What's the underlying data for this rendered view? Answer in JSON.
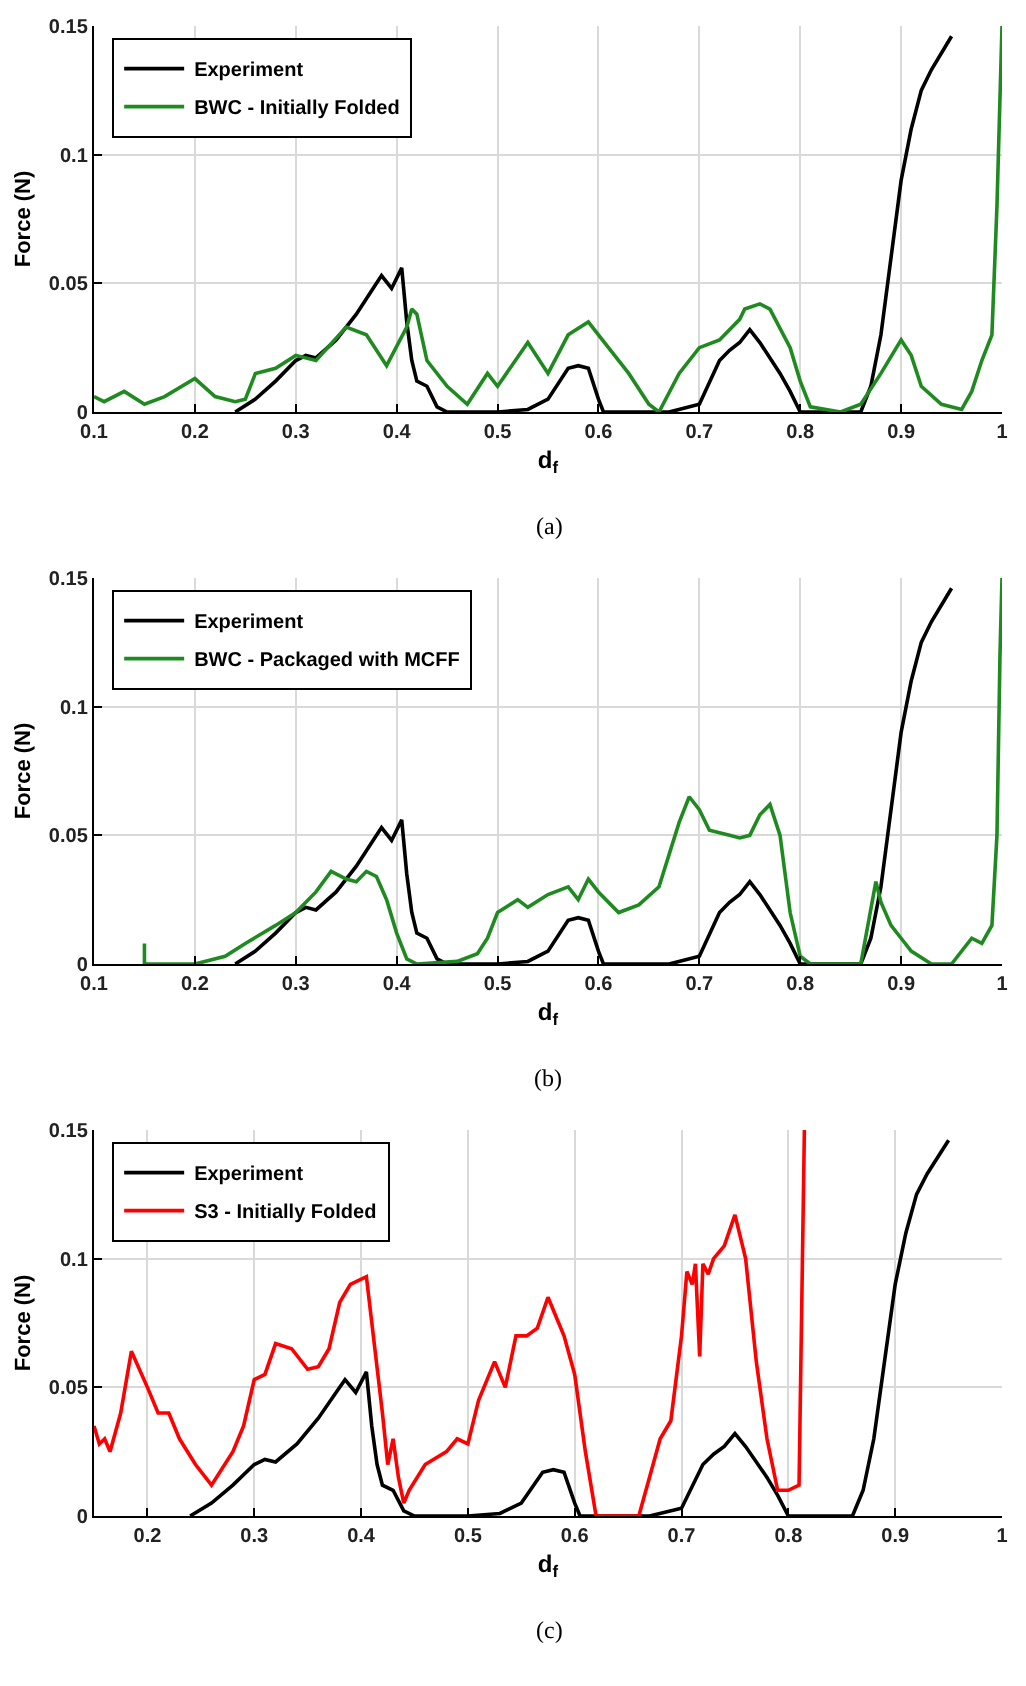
{
  "chart_data": [
    {
      "type": "line",
      "xlabel": "d$_{f}$",
      "ylabel": "Force (N)",
      "annotations": [
        "(a)"
      ],
      "xlim": [
        0.1,
        1
      ],
      "xticks": [
        0.1,
        0.2,
        0.3,
        0.4,
        0.5,
        0.6,
        0.7,
        0.8,
        0.9,
        1
      ],
      "ylim": [
        0,
        0.15
      ],
      "yticks": [
        0,
        0.05,
        0.1,
        0.15
      ],
      "grid": true,
      "legend": "top left",
      "series": [
        {
          "name": "Experiment",
          "color": "#000000",
          "x": [
            0.24,
            0.26,
            0.28,
            0.3,
            0.31,
            0.32,
            0.34,
            0.36,
            0.38,
            0.385,
            0.395,
            0.405,
            0.41,
            0.415,
            0.42,
            0.43,
            0.44,
            0.45,
            0.5,
            0.53,
            0.55,
            0.57,
            0.58,
            0.59,
            0.6,
            0.605,
            0.67,
            0.7,
            0.72,
            0.73,
            0.74,
            0.75,
            0.76,
            0.78,
            0.79,
            0.8,
            0.86,
            0.87,
            0.88,
            0.9,
            0.91,
            0.92,
            0.93,
            0.95
          ],
          "values": [
            0,
            0.005,
            0.012,
            0.02,
            0.022,
            0.021,
            0.028,
            0.038,
            0.05,
            0.053,
            0.048,
            0.056,
            0.035,
            0.02,
            0.012,
            0.01,
            0.002,
            0,
            0,
            0.001,
            0.005,
            0.017,
            0.018,
            0.017,
            0.005,
            0,
            0,
            0.003,
            0.02,
            0.024,
            0.027,
            0.032,
            0.027,
            0.015,
            0.008,
            0,
            0,
            0.01,
            0.03,
            0.09,
            0.11,
            0.125,
            0.133,
            0.146
          ]
        },
        {
          "name": "BWC - Initially Folded",
          "color": "#1f8a1f",
          "x": [
            0.1,
            0.11,
            0.13,
            0.15,
            0.17,
            0.2,
            0.22,
            0.24,
            0.25,
            0.26,
            0.28,
            0.3,
            0.32,
            0.35,
            0.37,
            0.39,
            0.41,
            0.415,
            0.42,
            0.43,
            0.45,
            0.47,
            0.49,
            0.5,
            0.53,
            0.55,
            0.57,
            0.59,
            0.6,
            0.63,
            0.65,
            0.66,
            0.68,
            0.7,
            0.72,
            0.74,
            0.745,
            0.76,
            0.77,
            0.79,
            0.8,
            0.81,
            0.84,
            0.86,
            0.88,
            0.9,
            0.91,
            0.92,
            0.94,
            0.96,
            0.97,
            0.98,
            0.99,
            0.995,
            1
          ],
          "values": [
            0.006,
            0.004,
            0.008,
            0.003,
            0.006,
            0.013,
            0.006,
            0.004,
            0.005,
            0.015,
            0.017,
            0.022,
            0.02,
            0.033,
            0.03,
            0.018,
            0.033,
            0.04,
            0.038,
            0.02,
            0.01,
            0.003,
            0.015,
            0.01,
            0.027,
            0.015,
            0.03,
            0.035,
            0.03,
            0.015,
            0.003,
            0,
            0.015,
            0.025,
            0.028,
            0.036,
            0.04,
            0.042,
            0.04,
            0.025,
            0.012,
            0.002,
            0,
            0.003,
            0.015,
            0.028,
            0.022,
            0.01,
            0.003,
            0.001,
            0.008,
            0.02,
            0.03,
            0.08,
            0.15
          ]
        }
      ]
    },
    {
      "type": "line",
      "xlabel": "d$_{f}$",
      "ylabel": "Force (N)",
      "annotations": [
        "(b)"
      ],
      "xlim": [
        0.1,
        1
      ],
      "xticks": [
        0.1,
        0.2,
        0.3,
        0.4,
        0.5,
        0.6,
        0.7,
        0.8,
        0.9,
        1
      ],
      "ylim": [
        0,
        0.15
      ],
      "yticks": [
        0,
        0.05,
        0.1,
        0.15
      ],
      "grid": true,
      "legend": "top left",
      "series": [
        {
          "name": "Experiment",
          "color": "#000000",
          "x": [
            0.24,
            0.26,
            0.28,
            0.3,
            0.31,
            0.32,
            0.34,
            0.36,
            0.38,
            0.385,
            0.395,
            0.405,
            0.41,
            0.415,
            0.42,
            0.43,
            0.44,
            0.45,
            0.5,
            0.53,
            0.55,
            0.57,
            0.58,
            0.59,
            0.6,
            0.605,
            0.67,
            0.7,
            0.72,
            0.73,
            0.74,
            0.75,
            0.76,
            0.78,
            0.79,
            0.8,
            0.86,
            0.87,
            0.88,
            0.9,
            0.91,
            0.92,
            0.93,
            0.95
          ],
          "values": [
            0,
            0.005,
            0.012,
            0.02,
            0.022,
            0.021,
            0.028,
            0.038,
            0.05,
            0.053,
            0.048,
            0.056,
            0.035,
            0.02,
            0.012,
            0.01,
            0.002,
            0,
            0,
            0.001,
            0.005,
            0.017,
            0.018,
            0.017,
            0.005,
            0,
            0,
            0.003,
            0.02,
            0.024,
            0.027,
            0.032,
            0.027,
            0.015,
            0.008,
            0,
            0,
            0.01,
            0.03,
            0.09,
            0.11,
            0.125,
            0.133,
            0.146
          ]
        },
        {
          "name": "BWC - Packaged with MCFF",
          "color": "#1f8a1f",
          "x": [
            0.15,
            0.15,
            0.2,
            0.23,
            0.25,
            0.28,
            0.3,
            0.32,
            0.335,
            0.35,
            0.36,
            0.37,
            0.38,
            0.39,
            0.4,
            0.41,
            0.42,
            0.46,
            0.48,
            0.49,
            0.5,
            0.52,
            0.53,
            0.55,
            0.57,
            0.58,
            0.59,
            0.6,
            0.62,
            0.64,
            0.66,
            0.68,
            0.69,
            0.7,
            0.71,
            0.73,
            0.74,
            0.75,
            0.76,
            0.77,
            0.78,
            0.79,
            0.8,
            0.81,
            0.86,
            0.875,
            0.88,
            0.89,
            0.9,
            0.91,
            0.93,
            0.95,
            0.97,
            0.98,
            0.99,
            0.995,
            0.998,
            1
          ],
          "values": [
            0.008,
            0,
            0,
            0.003,
            0.008,
            0.015,
            0.02,
            0.028,
            0.036,
            0.033,
            0.032,
            0.036,
            0.034,
            0.025,
            0.012,
            0.002,
            0,
            0.001,
            0.004,
            0.01,
            0.02,
            0.025,
            0.022,
            0.027,
            0.03,
            0.025,
            0.033,
            0.028,
            0.02,
            0.023,
            0.03,
            0.055,
            0.065,
            0.06,
            0.052,
            0.05,
            0.049,
            0.05,
            0.058,
            0.062,
            0.05,
            0.02,
            0.003,
            0,
            0,
            0.032,
            0.024,
            0.015,
            0.01,
            0.005,
            0,
            0,
            0.01,
            0.008,
            0.015,
            0.05,
            0.12,
            0.15
          ]
        }
      ]
    },
    {
      "type": "line",
      "xlabel": "d$_{f}$",
      "ylabel": "Force (N)",
      "annotations": [
        "(c)"
      ],
      "xlim": [
        0.15,
        1
      ],
      "xticks": [
        0.2,
        0.3,
        0.4,
        0.5,
        0.6,
        0.7,
        0.8,
        0.9,
        1
      ],
      "ylim": [
        0,
        0.15
      ],
      "yticks": [
        0,
        0.05,
        0.1,
        0.15
      ],
      "grid": true,
      "legend": "top left",
      "series": [
        {
          "name": "Experiment",
          "color": "#000000",
          "x": [
            0.24,
            0.26,
            0.28,
            0.3,
            0.31,
            0.32,
            0.34,
            0.36,
            0.38,
            0.385,
            0.395,
            0.405,
            0.41,
            0.415,
            0.42,
            0.43,
            0.44,
            0.45,
            0.5,
            0.53,
            0.55,
            0.57,
            0.58,
            0.59,
            0.6,
            0.605,
            0.67,
            0.7,
            0.72,
            0.73,
            0.74,
            0.75,
            0.76,
            0.78,
            0.79,
            0.8,
            0.86,
            0.87,
            0.88,
            0.9,
            0.91,
            0.92,
            0.93,
            0.95
          ],
          "values": [
            0,
            0.005,
            0.012,
            0.02,
            0.022,
            0.021,
            0.028,
            0.038,
            0.05,
            0.053,
            0.048,
            0.056,
            0.035,
            0.02,
            0.012,
            0.01,
            0.002,
            0,
            0,
            0.001,
            0.005,
            0.017,
            0.018,
            0.017,
            0.005,
            0,
            0,
            0.003,
            0.02,
            0.024,
            0.027,
            0.032,
            0.027,
            0.015,
            0.008,
            0,
            0,
            0.01,
            0.03,
            0.09,
            0.11,
            0.125,
            0.133,
            0.146
          ]
        },
        {
          "name": "S3 - Initially Folded",
          "color": "#ff0000",
          "x": [
            0.15,
            0.155,
            0.16,
            0.165,
            0.175,
            0.185,
            0.2,
            0.21,
            0.22,
            0.23,
            0.245,
            0.26,
            0.28,
            0.29,
            0.3,
            0.31,
            0.32,
            0.335,
            0.35,
            0.36,
            0.37,
            0.38,
            0.39,
            0.405,
            0.42,
            0.425,
            0.43,
            0.435,
            0.44,
            0.445,
            0.46,
            0.48,
            0.49,
            0.5,
            0.51,
            0.525,
            0.535,
            0.545,
            0.555,
            0.565,
            0.575,
            0.585,
            0.59,
            0.6,
            0.61,
            0.62,
            0.66,
            0.67,
            0.68,
            0.69,
            0.7,
            0.705,
            0.71,
            0.713,
            0.717,
            0.72,
            0.725,
            0.73,
            0.74,
            0.75,
            0.76,
            0.77,
            0.78,
            0.79,
            0.8,
            0.81,
            0.815
          ],
          "values": [
            0.035,
            0.028,
            0.03,
            0.025,
            0.04,
            0.064,
            0.05,
            0.04,
            0.04,
            0.03,
            0.02,
            0.012,
            0.025,
            0.035,
            0.053,
            0.055,
            0.067,
            0.065,
            0.057,
            0.058,
            0.065,
            0.083,
            0.09,
            0.093,
            0.04,
            0.02,
            0.03,
            0.015,
            0.005,
            0.01,
            0.02,
            0.025,
            0.03,
            0.028,
            0.045,
            0.06,
            0.05,
            0.07,
            0.07,
            0.073,
            0.085,
            0.075,
            0.07,
            0.055,
            0.025,
            0,
            0,
            0.015,
            0.03,
            0.037,
            0.07,
            0.095,
            0.09,
            0.098,
            0.062,
            0.098,
            0.094,
            0.1,
            0.105,
            0.117,
            0.1,
            0.06,
            0.03,
            0.01,
            0.01,
            0.012,
            0.15
          ]
        }
      ]
    }
  ]
}
